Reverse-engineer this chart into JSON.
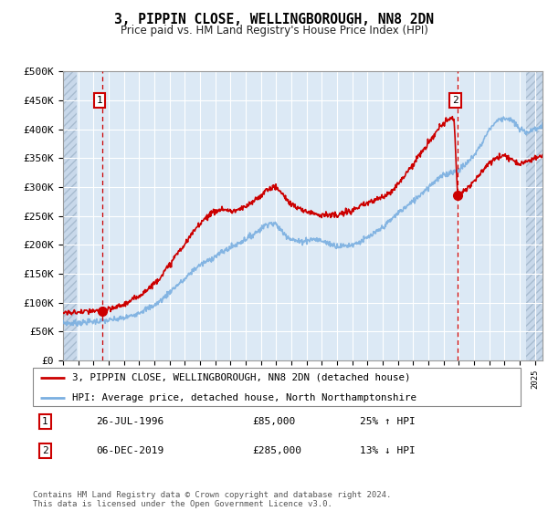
{
  "title": "3, PIPPIN CLOSE, WELLINGBOROUGH, NN8 2DN",
  "subtitle": "Price paid vs. HM Land Registry's House Price Index (HPI)",
  "legend_line1": "3, PIPPIN CLOSE, WELLINGBOROUGH, NN8 2DN (detached house)",
  "legend_line2": "HPI: Average price, detached house, North Northamptonshire",
  "annotation1_date": "26-JUL-1996",
  "annotation1_price": "£85,000",
  "annotation1_hpi": "25% ↑ HPI",
  "annotation2_date": "06-DEC-2019",
  "annotation2_price": "£285,000",
  "annotation2_hpi": "13% ↓ HPI",
  "footer": "Contains HM Land Registry data © Crown copyright and database right 2024.\nThis data is licensed under the Open Government Licence v3.0.",
  "ylim": [
    0,
    500000
  ],
  "ytick_vals": [
    0,
    50000,
    100000,
    150000,
    200000,
    250000,
    300000,
    350000,
    400000,
    450000,
    500000
  ],
  "ytick_labels": [
    "£0",
    "£50K",
    "£100K",
    "£150K",
    "£200K",
    "£250K",
    "£300K",
    "£350K",
    "£400K",
    "£450K",
    "£500K"
  ],
  "price_color": "#cc0000",
  "hpi_color": "#7aafe0",
  "bg_color": "#dce9f5",
  "hatch_bg": "#c8d8ea",
  "grid_color": "#ffffff",
  "sale1_x": 1996.57,
  "sale1_y": 85000,
  "sale2_x": 2019.92,
  "sale2_y": 285000,
  "xmin": 1994,
  "xmax": 2025.5,
  "hatch_left_end": 1994.9,
  "hatch_right_start": 2024.4
}
